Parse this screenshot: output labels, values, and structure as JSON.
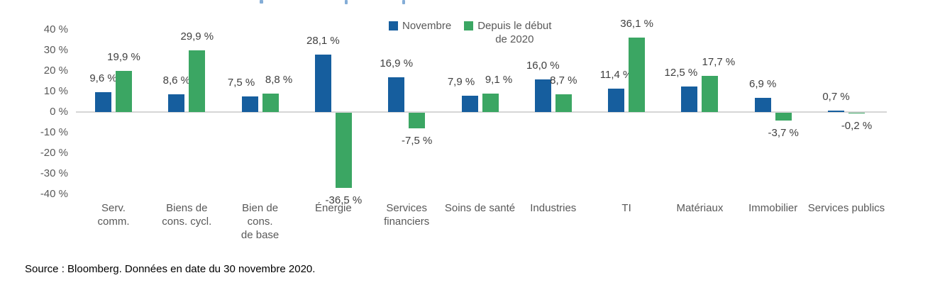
{
  "legend": {
    "items": [
      {
        "name": "Novembre",
        "label_lines": [
          "Novembre"
        ],
        "color": "#165E9E"
      },
      {
        "name": "Depuis le début de 2020",
        "label_lines": [
          "Depuis le début",
          "de 2020"
        ],
        "color": "#3BA663"
      }
    ]
  },
  "chart_data": {
    "type": "bar",
    "title": "",
    "categories": [
      "Serv. comm.",
      "Biens de cons. cycl.",
      "Bien de cons. de base",
      "Énergie",
      "Services financiers",
      "Soins de santé",
      "Industries",
      "TI",
      "Matériaux",
      "Immobilier",
      "Services publics"
    ],
    "category_lines": [
      [
        "Serv.",
        "comm."
      ],
      [
        "Biens de",
        "cons. cycl."
      ],
      [
        "Bien de",
        "cons.",
        "de base"
      ],
      [
        "Énergie"
      ],
      [
        "Services",
        "financiers"
      ],
      [
        "Soins de santé"
      ],
      [
        "Industries"
      ],
      [
        "TI"
      ],
      [
        "Matériaux"
      ],
      [
        "Immobilier"
      ],
      [
        "Services publics"
      ]
    ],
    "series": [
      {
        "name": "Novembre",
        "color": "#165E9E",
        "values": [
          9.6,
          8.6,
          7.5,
          28.1,
          16.9,
          7.9,
          16.0,
          11.4,
          12.5,
          6.9,
          0.7
        ],
        "labels": [
          "9,6 %",
          "8,6 %",
          "7,5 %",
          "28,1 %",
          "16,9 %",
          "7,9 %",
          "16,0 %",
          "11,4 %",
          "12,5 %",
          "6,9 %",
          "0,7 %"
        ]
      },
      {
        "name": "Depuis le début de 2020",
        "color": "#3BA663",
        "values": [
          19.9,
          29.9,
          8.8,
          -36.5,
          -7.5,
          9.1,
          8.7,
          36.1,
          17.7,
          -3.7,
          -0.2
        ],
        "labels": [
          "19,9 %",
          "29,9 %",
          "8,8 %",
          "-36,5 %",
          "-7,5 %",
          "9,1 %",
          "8,7 %",
          "36,1 %",
          "17,7 %",
          "-3,7 %",
          "-0,2 %"
        ]
      }
    ],
    "ylim": [
      -40,
      40
    ],
    "yticks": [
      40,
      30,
      20,
      10,
      0,
      -10,
      -20,
      -30,
      -40
    ],
    "ytick_labels": [
      "40 %",
      "30 %",
      "20 %",
      "10 %",
      "0 %",
      "-10 %",
      "-20 %",
      "-30 %",
      "-40 %"
    ],
    "grid": false,
    "legend_position": "top-center"
  },
  "footer": {
    "source": "Source : Bloomberg. Données en date du 30 novembre 2020."
  }
}
